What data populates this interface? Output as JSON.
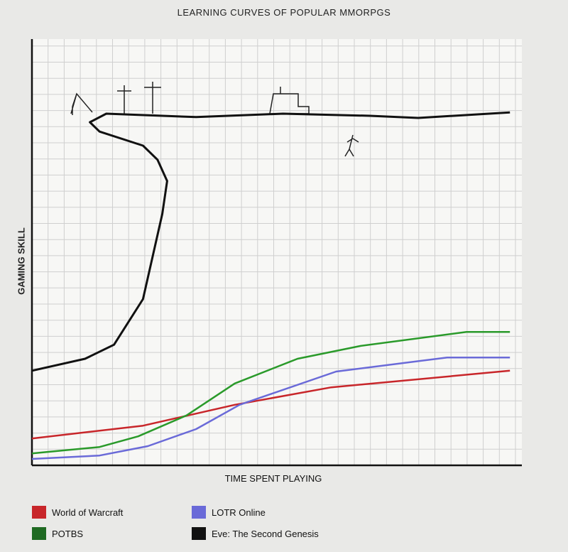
{
  "chart_data": {
    "type": "line",
    "title": "LEARNING CURVES OF POPULAR MMORPGS",
    "xlabel": "TIME SPENT PLAYING",
    "ylabel": "GAMING SKILL",
    "xlim": [
      0,
      100
    ],
    "ylim": [
      0,
      100
    ],
    "grid": true,
    "legend_position": "bottom",
    "series": [
      {
        "name": "World of Warcraft",
        "color": "#c8262a",
        "x": [
          0,
          23,
          42,
          62,
          99
        ],
        "y": [
          6.3,
          9.3,
          14.2,
          18.3,
          22.2
        ]
      },
      {
        "name": "LOTR Online",
        "color": "#6a6ad8",
        "x": [
          0,
          14,
          24,
          34,
          43,
          63,
          86,
          99
        ],
        "y": [
          1.5,
          2.3,
          4.5,
          8.5,
          14.2,
          22,
          25.3,
          25.3
        ]
      },
      {
        "name": "POTBS",
        "color": "#2a9a2a",
        "x": [
          0,
          14,
          22,
          32,
          42,
          55,
          68,
          90,
          99
        ],
        "y": [
          2.8,
          4.3,
          6.8,
          11.7,
          19.2,
          25,
          28,
          31.3,
          31.3
        ]
      },
      {
        "name": "Eve: The Second Genesis",
        "color": "#111111",
        "x": [
          0,
          11,
          17,
          23,
          27,
          28,
          26,
          23,
          14,
          12,
          15.4,
          34,
          52,
          70,
          80,
          99
        ],
        "y": [
          22.2,
          25,
          28.3,
          39,
          59,
          66.7,
          71.7,
          75,
          78.3,
          80.5,
          82.5,
          81.7,
          82.5,
          82,
          81.5,
          82.8
        ]
      }
    ]
  }
}
